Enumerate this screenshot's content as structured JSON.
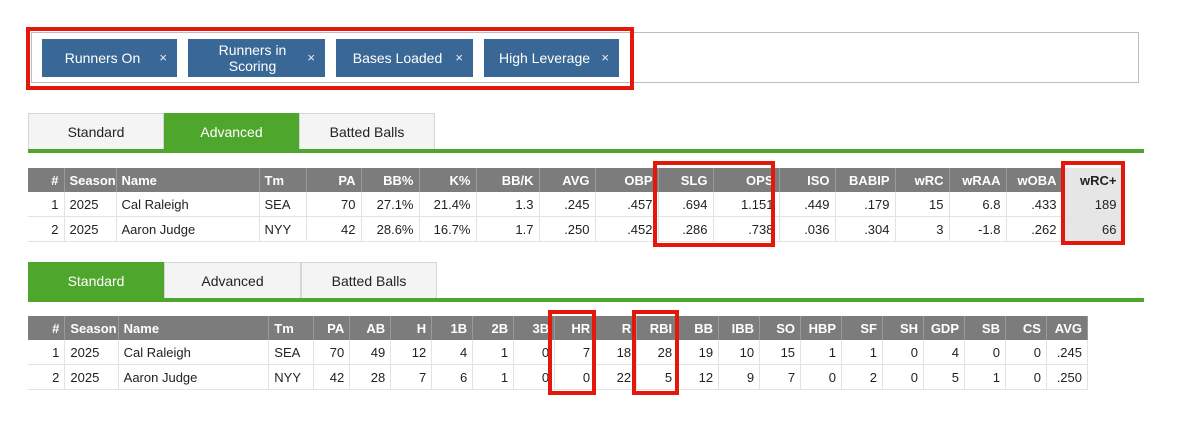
{
  "filters": [
    {
      "label": "Runners On",
      "close": "×"
    },
    {
      "label": "Runners in Scoring",
      "close": "×"
    },
    {
      "label": "Bases Loaded",
      "close": "×"
    },
    {
      "label": "High Leverage",
      "close": "×"
    }
  ],
  "tabs": [
    "Standard",
    "Advanced",
    "Batted Balls"
  ],
  "advanced_table": {
    "active_tab": "Advanced",
    "headers": [
      "#",
      "Season",
      "Name",
      "Tm",
      "PA",
      "BB%",
      "K%",
      "BB/K",
      "AVG",
      "OBP",
      "SLG",
      "OPS",
      "ISO",
      "BABIP",
      "wRC",
      "wRAA",
      "wOBA",
      "wRC+"
    ],
    "rows": [
      [
        "1",
        "2025",
        "Cal Raleigh",
        "SEA",
        "70",
        "27.1%",
        "21.4%",
        "1.3",
        ".245",
        ".457",
        ".694",
        "1.151",
        ".449",
        ".179",
        "15",
        "6.8",
        ".433",
        "189"
      ],
      [
        "2",
        "2025",
        "Aaron Judge",
        "NYY",
        "42",
        "28.6%",
        "16.7%",
        "1.7",
        ".250",
        ".452",
        ".286",
        ".738",
        ".036",
        ".304",
        "3",
        "-1.8",
        ".262",
        "66"
      ]
    ]
  },
  "standard_table": {
    "active_tab": "Standard",
    "headers": [
      "#",
      "Season",
      "Name",
      "Tm",
      "PA",
      "AB",
      "H",
      "1B",
      "2B",
      "3B",
      "HR",
      "R",
      "RBI",
      "BB",
      "IBB",
      "SO",
      "HBP",
      "SF",
      "SH",
      "GDP",
      "SB",
      "CS",
      "AVG"
    ],
    "rows": [
      [
        "1",
        "2025",
        "Cal Raleigh",
        "SEA",
        "70",
        "49",
        "12",
        "4",
        "1",
        "0",
        "7",
        "18",
        "28",
        "19",
        "10",
        "15",
        "1",
        "1",
        "0",
        "4",
        "0",
        "0",
        ".245"
      ],
      [
        "2",
        "2025",
        "Aaron Judge",
        "NYY",
        "42",
        "28",
        "7",
        "6",
        "1",
        "0",
        "0",
        "22",
        "5",
        "12",
        "9",
        "7",
        "0",
        "2",
        "0",
        "5",
        "1",
        "0",
        ".250"
      ]
    ]
  },
  "colors": {
    "chip": "#3a6896",
    "tab_active": "#4ea62c",
    "header": "#7c7c7c",
    "highlight": "#e3170a"
  }
}
